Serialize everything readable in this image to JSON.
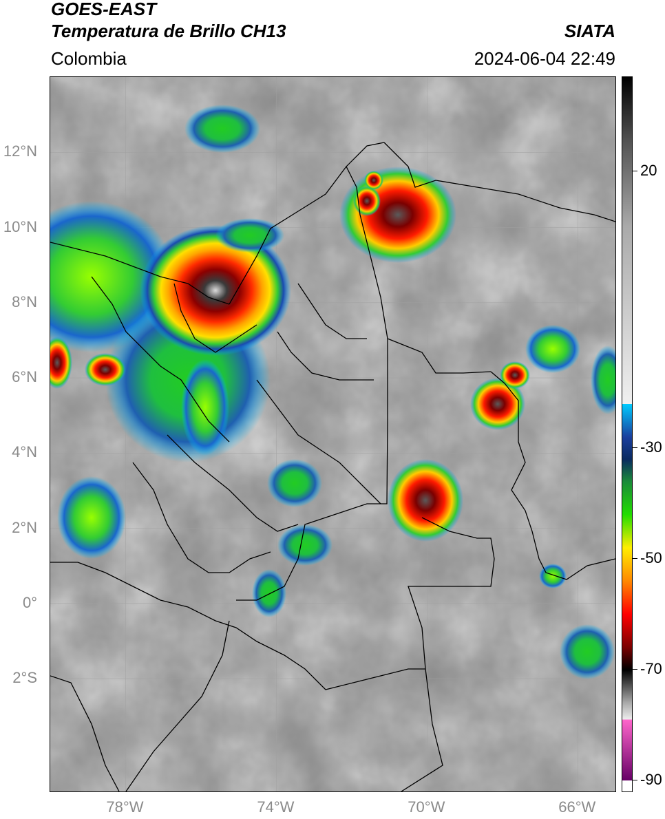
{
  "header": {
    "satellite": "GOES-EAST",
    "product": "Temperatura de Brillo CH13",
    "region": "Colombia",
    "agency": "SIATA",
    "datetime": "2024-06-04 22:49"
  },
  "axes": {
    "y_labels": [
      {
        "text": "12°N",
        "lat": 12
      },
      {
        "text": "10°N",
        "lat": 10
      },
      {
        "text": "8°N",
        "lat": 8
      },
      {
        "text": "6°N",
        "lat": 6
      },
      {
        "text": "4°N",
        "lat": 4
      },
      {
        "text": "2°N",
        "lat": 2
      },
      {
        "text": "0°",
        "lat": 0
      },
      {
        "text": "2°S",
        "lat": -2
      }
    ],
    "x_labels": [
      {
        "text": "78°W",
        "lon": -78
      },
      {
        "text": "74°W",
        "lon": -74
      },
      {
        "text": "70°W",
        "lon": -70
      },
      {
        "text": "66°W",
        "lon": -66
      }
    ],
    "tick_color": "#8a8a8a"
  },
  "colorbar": {
    "labels": [
      "20",
      "-30",
      "-50",
      "-70",
      "-90"
    ],
    "values": [
      20,
      -30,
      -50,
      -70,
      -90
    ],
    "range": [
      -92,
      37
    ],
    "unit": ""
  },
  "map": {
    "extent": {
      "lon": [
        -80,
        -65
      ],
      "lat": [
        -5,
        14
      ]
    },
    "background": "grayscale infrared brightness temperature with colored cold cloud tops"
  }
}
